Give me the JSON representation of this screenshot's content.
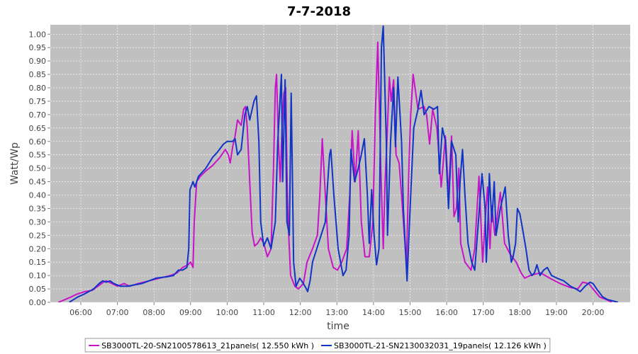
{
  "chart_data": {
    "type": "line",
    "title": "7-7-2018",
    "xlabel": "time",
    "ylabel": "Watt/Wp",
    "xlim": [
      "05:10",
      "21:01"
    ],
    "ylim": [
      0,
      1.035
    ],
    "x_ticks": [
      "06:00",
      "07:00",
      "08:00",
      "09:00",
      "10:00",
      "11:00",
      "12:00",
      "13:00",
      "14:00",
      "15:00",
      "16:00",
      "17:00",
      "18:00",
      "19:00",
      "20:00"
    ],
    "y_ticks": [
      "0.00",
      "0.05",
      "0.10",
      "0.15",
      "0.20",
      "0.25",
      "0.30",
      "0.35",
      "0.40",
      "0.45",
      "0.50",
      "0.55",
      "0.60",
      "0.65",
      "0.70",
      "0.75",
      "0.80",
      "0.85",
      "0.90",
      "0.95",
      "1.00"
    ],
    "grid": true,
    "legend_position": "bottom",
    "colors": {
      "plot_background": "#c0c0c0",
      "grid": "#ffffff",
      "legend_border": "#9a9a9a"
    },
    "series": [
      {
        "name": "SB3000TL-20-SN2100578613_21panels( 12.550 kWh )",
        "color": "#c814c8",
        "x": [
          "05:23",
          "05:34",
          "05:44",
          "05:53",
          "06:07",
          "06:19",
          "06:28",
          "06:37",
          "06:42",
          "06:51",
          "07:00",
          "07:11",
          "07:20",
          "07:34",
          "07:52",
          "08:09",
          "08:27",
          "08:38",
          "08:47",
          "08:56",
          "09:00",
          "09:04",
          "09:06",
          "09:10",
          "09:16",
          "09:25",
          "09:36",
          "09:48",
          "09:57",
          "10:02",
          "10:05",
          "10:09",
          "10:13",
          "10:17",
          "10:20",
          "10:23",
          "10:27",
          "10:30",
          "10:33",
          "10:37",
          "10:41",
          "10:45",
          "10:50",
          "10:55",
          "11:00",
          "11:06",
          "11:12",
          "11:16",
          "11:19",
          "11:21",
          "11:24",
          "11:27",
          "11:30",
          "11:33",
          "11:36",
          "11:38",
          "11:40",
          "11:44",
          "11:51",
          "11:57",
          "12:05",
          "12:11",
          "12:20",
          "12:28",
          "12:32",
          "12:36",
          "12:41",
          "12:46",
          "12:54",
          "13:01",
          "13:08",
          "13:16",
          "13:21",
          "13:25",
          "13:30",
          "13:35",
          "13:40",
          "13:46",
          "13:53",
          "13:59",
          "14:03",
          "14:07",
          "14:12",
          "14:16",
          "14:19",
          "14:22",
          "14:26",
          "14:29",
          "14:33",
          "14:37",
          "14:42",
          "14:46",
          "14:54",
          "14:58",
          "15:01",
          "15:05",
          "15:13",
          "15:23",
          "15:27",
          "15:32",
          "15:37",
          "15:44",
          "15:51",
          "15:58",
          "16:03",
          "16:08",
          "16:12",
          "16:16",
          "16:20",
          "16:23",
          "16:30",
          "16:40",
          "16:46",
          "16:53",
          "16:59",
          "17:03",
          "17:07",
          "17:11",
          "17:14",
          "17:19",
          "17:28",
          "17:35",
          "17:44",
          "17:54",
          "18:02",
          "18:08",
          "18:17",
          "18:34",
          "18:49",
          "19:06",
          "19:23",
          "19:35",
          "19:43",
          "19:53",
          "20:00",
          "20:11",
          "20:22",
          "20:31"
        ],
        "y": [
          0,
          0.01,
          0.02,
          0.03,
          0.04,
          0.045,
          0.06,
          0.075,
          0.08,
          0.07,
          0.06,
          0.07,
          0.06,
          0.07,
          0.08,
          0.09,
          0.1,
          0.11,
          0.13,
          0.14,
          0.15,
          0.13,
          0.3,
          0.45,
          0.47,
          0.49,
          0.51,
          0.54,
          0.57,
          0.55,
          0.52,
          0.58,
          0.62,
          0.68,
          0.67,
          0.66,
          0.72,
          0.73,
          0.65,
          0.45,
          0.26,
          0.21,
          0.22,
          0.24,
          0.22,
          0.17,
          0.2,
          0.5,
          0.8,
          0.85,
          0.6,
          0.45,
          0.65,
          0.78,
          0.8,
          0.5,
          0.3,
          0.1,
          0.06,
          0.05,
          0.07,
          0.15,
          0.2,
          0.25,
          0.4,
          0.61,
          0.4,
          0.2,
          0.13,
          0.12,
          0.15,
          0.2,
          0.4,
          0.64,
          0.45,
          0.64,
          0.3,
          0.17,
          0.17,
          0.3,
          0.7,
          0.97,
          0.5,
          0.2,
          0.45,
          0.6,
          0.84,
          0.75,
          0.83,
          0.55,
          0.52,
          0.4,
          0.14,
          0.5,
          0.7,
          0.85,
          0.72,
          0.73,
          0.7,
          0.59,
          0.72,
          0.65,
          0.43,
          0.62,
          0.4,
          0.62,
          0.32,
          0.35,
          0.5,
          0.22,
          0.15,
          0.12,
          0.2,
          0.47,
          0.15,
          0.3,
          0.43,
          0.2,
          0.36,
          0.25,
          0.41,
          0.22,
          0.18,
          0.15,
          0.11,
          0.09,
          0.1,
          0.11,
          0.09,
          0.07,
          0.055,
          0.05,
          0.075,
          0.07,
          0.05,
          0.02,
          0.01,
          0
        ]
      },
      {
        "name": "SB3000TL-21-SN2130032031_19panels( 12.126 kWh )",
        "color": "#1034c6",
        "x": [
          "05:41",
          "05:48",
          "05:55",
          "06:05",
          "06:13",
          "06:21",
          "06:30",
          "06:36",
          "06:42",
          "06:48",
          "06:54",
          "07:05",
          "07:17",
          "07:28",
          "07:40",
          "07:52",
          "08:03",
          "08:21",
          "08:32",
          "08:40",
          "08:47",
          "08:54",
          "08:57",
          "08:59",
          "09:04",
          "09:07",
          "09:13",
          "09:25",
          "09:36",
          "09:44",
          "09:54",
          "10:00",
          "10:09",
          "10:13",
          "10:17",
          "10:23",
          "10:29",
          "10:33",
          "10:37",
          "10:44",
          "10:48",
          "10:52",
          "10:55",
          "11:00",
          "11:06",
          "11:12",
          "11:19",
          "11:23",
          "11:29",
          "11:31",
          "11:35",
          "11:38",
          "11:42",
          "11:45",
          "11:49",
          "11:53",
          "11:59",
          "12:05",
          "12:10",
          "12:12",
          "12:16",
          "12:20",
          "12:27",
          "12:34",
          "12:41",
          "12:45",
          "12:48",
          "12:50",
          "12:55",
          "13:02",
          "13:10",
          "13:15",
          "13:20",
          "13:23",
          "13:29",
          "13:35",
          "13:40",
          "13:45",
          "13:50",
          "13:53",
          "13:57",
          "14:01",
          "14:05",
          "14:09",
          "14:13",
          "14:16",
          "14:21",
          "14:23",
          "14:28",
          "14:33",
          "14:36",
          "14:40",
          "14:46",
          "14:49",
          "14:55",
          "15:01",
          "15:06",
          "15:13",
          "15:18",
          "15:23",
          "15:31",
          "15:39",
          "15:45",
          "15:48",
          "15:53",
          "15:58",
          "16:03",
          "16:08",
          "16:15",
          "16:19",
          "16:22",
          "16:26",
          "16:30",
          "16:35",
          "16:41",
          "16:46",
          "16:52",
          "16:58",
          "17:03",
          "17:05",
          "17:07",
          "17:10",
          "17:14",
          "17:18",
          "17:21",
          "17:28",
          "17:36",
          "17:41",
          "17:46",
          "17:49",
          "17:53",
          "17:56",
          "18:00",
          "18:04",
          "18:10",
          "18:15",
          "18:20",
          "18:24",
          "18:28",
          "18:33",
          "18:39",
          "18:45",
          "18:52",
          "19:01",
          "19:12",
          "19:23",
          "19:32",
          "19:39",
          "19:47",
          "19:55",
          "20:00",
          "20:06",
          "20:16",
          "20:24",
          "20:33",
          "20:41"
        ],
        "y": [
          0,
          0.01,
          0.02,
          0.03,
          0.04,
          0.05,
          0.07,
          0.08,
          0.075,
          0.08,
          0.07,
          0.06,
          0.06,
          0.065,
          0.07,
          0.08,
          0.09,
          0.095,
          0.1,
          0.12,
          0.12,
          0.13,
          0.2,
          0.42,
          0.45,
          0.43,
          0.47,
          0.5,
          0.54,
          0.56,
          0.59,
          0.6,
          0.6,
          0.61,
          0.55,
          0.57,
          0.7,
          0.73,
          0.68,
          0.75,
          0.77,
          0.6,
          0.3,
          0.21,
          0.24,
          0.2,
          0.3,
          0.6,
          0.85,
          0.45,
          0.83,
          0.3,
          0.25,
          0.78,
          0.15,
          0.06,
          0.09,
          0.07,
          0.05,
          0.04,
          0.08,
          0.15,
          0.2,
          0.25,
          0.3,
          0.45,
          0.55,
          0.57,
          0.4,
          0.2,
          0.1,
          0.12,
          0.25,
          0.57,
          0.45,
          0.5,
          0.55,
          0.61,
          0.4,
          0.22,
          0.42,
          0.25,
          0.14,
          0.2,
          0.95,
          1.03,
          0.6,
          0.25,
          0.6,
          0.8,
          0.58,
          0.84,
          0.6,
          0.35,
          0.08,
          0.4,
          0.65,
          0.72,
          0.79,
          0.7,
          0.73,
          0.72,
          0.73,
          0.48,
          0.65,
          0.6,
          0.35,
          0.6,
          0.55,
          0.3,
          0.45,
          0.57,
          0.4,
          0.22,
          0.15,
          0.12,
          0.3,
          0.48,
          0.35,
          0.15,
          0.25,
          0.48,
          0.3,
          0.45,
          0.25,
          0.35,
          0.43,
          0.25,
          0.15,
          0.17,
          0.22,
          0.35,
          0.33,
          0.28,
          0.2,
          0.12,
          0.1,
          0.11,
          0.14,
          0.1,
          0.12,
          0.13,
          0.1,
          0.09,
          0.08,
          0.06,
          0.05,
          0.04,
          0.06,
          0.075,
          0.07,
          0.05,
          0.02,
          0.01,
          0.005,
          0
        ]
      }
    ]
  }
}
